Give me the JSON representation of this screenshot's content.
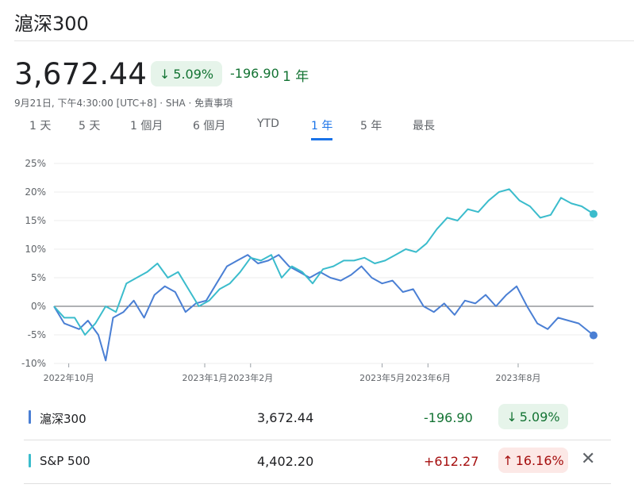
{
  "header": {
    "title": "滬深300",
    "price": "3,672.44",
    "pct_change": "5.09%",
    "abs_change": "-196.90",
    "period_label": "1 年",
    "meta": "9月21日, 下午4:30:00 [UTC+8] · SHA · 免責事項"
  },
  "tabs": [
    {
      "label": "1 天"
    },
    {
      "label": "5 天"
    },
    {
      "label": "1 個月"
    },
    {
      "label": "6 個月"
    },
    {
      "label": "YTD"
    },
    {
      "label": "1 年",
      "active": true
    },
    {
      "label": "5 年"
    },
    {
      "label": "最長"
    }
  ],
  "legend": [
    {
      "name": "滬深300",
      "value": "3,672.44",
      "change": "-196.90",
      "pct": "5.09%",
      "direction": "down",
      "color": "#4a7fd4"
    },
    {
      "name": "S&P 500",
      "value": "4,402.20",
      "change": "+612.27",
      "pct": "16.16%",
      "direction": "up",
      "color": "#3bbccc"
    }
  ],
  "colors": {
    "csi300": "#4a7fd4",
    "sp500": "#3bbccc",
    "green": "#137333",
    "green_bg": "#e6f4ea",
    "red": "#a50e0e",
    "red_bg": "#fce8e6"
  },
  "chart_data": {
    "type": "line",
    "ylabel": "",
    "xlabel": "",
    "ylim": [
      -10,
      25
    ],
    "y_ticks": [
      "25%",
      "20%",
      "15%",
      "10%",
      "5%",
      "0%",
      "-5%",
      "-10%"
    ],
    "y_tick_values": [
      25,
      20,
      15,
      10,
      5,
      0,
      -5,
      -10
    ],
    "x_ticks": [
      "2022年10月",
      "2023年1月",
      "2023年2月",
      "2023年5月",
      "2023年6月",
      "2023年8月"
    ],
    "x_tick_dates": [
      "2022-10-01",
      "2023-01-01",
      "2023-02-01",
      "2023-05-01",
      "2023-06-01",
      "2023-08-01"
    ],
    "x_range": [
      "2022-09-21",
      "2023-09-21"
    ],
    "grid": true,
    "series": [
      {
        "name": "滬深300",
        "color": "#4a7fd4",
        "points": [
          [
            "2022-09-21",
            0
          ],
          [
            "2022-09-28",
            -3
          ],
          [
            "2022-10-08",
            -4
          ],
          [
            "2022-10-14",
            -2.5
          ],
          [
            "2022-10-21",
            -5
          ],
          [
            "2022-10-26",
            -9.5
          ],
          [
            "2022-10-31",
            -2
          ],
          [
            "2022-11-07",
            -1
          ],
          [
            "2022-11-14",
            1
          ],
          [
            "2022-11-21",
            -2
          ],
          [
            "2022-11-28",
            2
          ],
          [
            "2022-12-05",
            3.5
          ],
          [
            "2022-12-12",
            2.5
          ],
          [
            "2022-12-19",
            -1
          ],
          [
            "2022-12-26",
            0.5
          ],
          [
            "2023-01-02",
            1
          ],
          [
            "2023-01-09",
            4
          ],
          [
            "2023-01-16",
            7
          ],
          [
            "2023-01-23",
            8
          ],
          [
            "2023-01-30",
            9
          ],
          [
            "2023-02-06",
            7.5
          ],
          [
            "2023-02-13",
            8
          ],
          [
            "2023-02-20",
            9
          ],
          [
            "2023-02-27",
            7
          ],
          [
            "2023-03-06",
            6
          ],
          [
            "2023-03-13",
            5
          ],
          [
            "2023-03-20",
            6
          ],
          [
            "2023-03-27",
            5
          ],
          [
            "2023-04-03",
            4.5
          ],
          [
            "2023-04-10",
            5.5
          ],
          [
            "2023-04-17",
            7
          ],
          [
            "2023-04-24",
            5
          ],
          [
            "2023-05-01",
            4
          ],
          [
            "2023-05-08",
            4.5
          ],
          [
            "2023-05-15",
            2.5
          ],
          [
            "2023-05-22",
            3
          ],
          [
            "2023-05-29",
            0
          ],
          [
            "2023-06-05",
            -1
          ],
          [
            "2023-06-12",
            0.5
          ],
          [
            "2023-06-19",
            -1.5
          ],
          [
            "2023-06-26",
            1
          ],
          [
            "2023-07-03",
            0.5
          ],
          [
            "2023-07-10",
            2
          ],
          [
            "2023-07-17",
            0
          ],
          [
            "2023-07-24",
            2
          ],
          [
            "2023-07-31",
            3.5
          ],
          [
            "2023-08-07",
            0
          ],
          [
            "2023-08-14",
            -3
          ],
          [
            "2023-08-21",
            -4
          ],
          [
            "2023-08-28",
            -2
          ],
          [
            "2023-09-04",
            -2.5
          ],
          [
            "2023-09-11",
            -3
          ],
          [
            "2023-09-21",
            -5.09
          ]
        ]
      },
      {
        "name": "S&P 500",
        "color": "#3bbccc",
        "points": [
          [
            "2022-09-21",
            0
          ],
          [
            "2022-09-28",
            -2
          ],
          [
            "2022-10-05",
            -2
          ],
          [
            "2022-10-12",
            -5
          ],
          [
            "2022-10-19",
            -3
          ],
          [
            "2022-10-26",
            0
          ],
          [
            "2022-11-02",
            -1
          ],
          [
            "2022-11-09",
            4
          ],
          [
            "2022-11-16",
            5
          ],
          [
            "2022-11-23",
            6
          ],
          [
            "2022-11-30",
            7.5
          ],
          [
            "2022-12-07",
            5
          ],
          [
            "2022-12-14",
            6
          ],
          [
            "2022-12-21",
            3
          ],
          [
            "2022-12-28",
            0
          ],
          [
            "2023-01-04",
            1
          ],
          [
            "2023-01-11",
            3
          ],
          [
            "2023-01-18",
            4
          ],
          [
            "2023-01-25",
            6
          ],
          [
            "2023-02-01",
            8.5
          ],
          [
            "2023-02-08",
            8
          ],
          [
            "2023-02-15",
            9
          ],
          [
            "2023-02-22",
            5
          ],
          [
            "2023-03-01",
            7
          ],
          [
            "2023-03-08",
            6
          ],
          [
            "2023-03-15",
            4
          ],
          [
            "2023-03-22",
            6.5
          ],
          [
            "2023-03-29",
            7
          ],
          [
            "2023-04-05",
            8
          ],
          [
            "2023-04-12",
            8
          ],
          [
            "2023-04-19",
            8.5
          ],
          [
            "2023-04-26",
            7.5
          ],
          [
            "2023-05-03",
            8
          ],
          [
            "2023-05-10",
            9
          ],
          [
            "2023-05-17",
            10
          ],
          [
            "2023-05-24",
            9.5
          ],
          [
            "2023-05-31",
            11
          ],
          [
            "2023-06-07",
            13.5
          ],
          [
            "2023-06-14",
            15.5
          ],
          [
            "2023-06-21",
            15
          ],
          [
            "2023-06-28",
            17
          ],
          [
            "2023-07-05",
            16.5
          ],
          [
            "2023-07-12",
            18.5
          ],
          [
            "2023-07-19",
            20
          ],
          [
            "2023-07-26",
            20.5
          ],
          [
            "2023-08-02",
            18.5
          ],
          [
            "2023-08-09",
            17.5
          ],
          [
            "2023-08-16",
            15.5
          ],
          [
            "2023-08-23",
            16
          ],
          [
            "2023-08-30",
            19
          ],
          [
            "2023-09-06",
            18
          ],
          [
            "2023-09-13",
            17.5
          ],
          [
            "2023-09-21",
            16.16
          ]
        ]
      }
    ]
  }
}
